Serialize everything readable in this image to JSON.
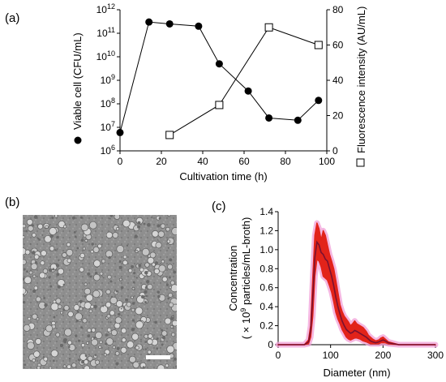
{
  "figure": {
    "panels": [
      {
        "label": "(a)",
        "chart_data": {
          "type": "scatter",
          "xlabel": "Cultivation time (h)",
          "xlim": [
            0,
            100
          ],
          "xticks": [
            "0",
            "20",
            "40",
            "60",
            "80",
            "100"
          ],
          "left_axis": {
            "label": "Viable cell (CFU/mL)",
            "scale": "log",
            "ylim": [
              1000000,
              1000000000000
            ],
            "ticks": [
              {
                "base": "10",
                "exp": "6"
              },
              {
                "base": "10",
                "exp": "7"
              },
              {
                "base": "10",
                "exp": "8"
              },
              {
                "base": "10",
                "exp": "9"
              },
              {
                "base": "10",
                "exp": "10"
              },
              {
                "base": "10",
                "exp": "11"
              },
              {
                "base": "10",
                "exp": "12"
              }
            ]
          },
          "right_axis": {
            "label": "Fluorescence intensity (AU/mL)",
            "ylim": [
              0,
              80
            ],
            "ticks": [
              "0",
              "20",
              "40",
              "60",
              "80"
            ]
          },
          "series": [
            {
              "marker": "filled-circle",
              "axis": "left",
              "color": "#000000",
              "x": [
                0,
                14,
                24,
                38,
                48,
                62,
                72,
                86,
                96
              ],
              "y": [
                6000000,
                300000000000,
                250000000000,
                200000000000,
                5000000000,
                350000000,
                25000000,
                20000000,
                140000000
              ]
            },
            {
              "marker": "open-square",
              "axis": "right",
              "color": "#000000",
              "x": [
                24,
                48,
                72,
                96
              ],
              "y": [
                9,
                26,
                70,
                60
              ]
            }
          ]
        }
      },
      {
        "label": "(b)",
        "image": {
          "kind": "negative-stain TEM micrograph",
          "scale_bar": true
        }
      },
      {
        "label": "(c)",
        "chart_data": {
          "type": "line",
          "xlabel": "Diameter (nm)",
          "ylabel_line1": "Concentration",
          "ylabel_line2": {
            "prefix": "( × 10",
            "exp": "9",
            "suffix": " particles/mL-broth)"
          },
          "xlim": [
            0,
            300
          ],
          "ylim": [
            0,
            1.4
          ],
          "xticks": [
            "0",
            "100",
            "200",
            "300"
          ],
          "yticks": [
            "0",
            "0.2",
            "0.4",
            "0.6",
            "0.8",
            "1.0",
            "1.2",
            "1.4"
          ],
          "colors": {
            "mean": "#7a1030",
            "error_band": "#e2231a",
            "halo": "#f2a0d8"
          },
          "x": [
            0,
            30,
            50,
            58,
            62,
            66,
            70,
            74,
            78,
            82,
            86,
            90,
            94,
            98,
            102,
            106,
            110,
            114,
            118,
            122,
            126,
            130,
            134,
            138,
            142,
            146,
            150,
            156,
            162,
            168,
            172,
            176,
            180,
            186,
            192,
            196,
            200,
            204,
            210,
            230,
            260,
            300
          ],
          "mean": [
            0,
            0,
            0,
            0.03,
            0.15,
            0.5,
            0.92,
            1.08,
            1.05,
            0.97,
            0.95,
            0.9,
            0.88,
            0.8,
            0.72,
            0.62,
            0.5,
            0.4,
            0.32,
            0.25,
            0.2,
            0.16,
            0.14,
            0.12,
            0.13,
            0.15,
            0.14,
            0.12,
            0.1,
            0.08,
            0.06,
            0.04,
            0.03,
            0.02,
            0.03,
            0.04,
            0.05,
            0.04,
            0.02,
            0,
            0,
            0
          ],
          "upper": [
            0,
            0,
            0,
            0.05,
            0.2,
            0.7,
            1.15,
            1.28,
            1.22,
            1.1,
            1.2,
            1.15,
            1.05,
            0.95,
            0.88,
            0.8,
            0.68,
            0.55,
            0.42,
            0.35,
            0.3,
            0.27,
            0.24,
            0.2,
            0.22,
            0.25,
            0.22,
            0.2,
            0.18,
            0.14,
            0.1,
            0.08,
            0.06,
            0.04,
            0.05,
            0.07,
            0.08,
            0.06,
            0.03,
            0,
            0,
            0
          ],
          "lower": [
            0,
            0,
            0,
            0.01,
            0.08,
            0.3,
            0.72,
            0.9,
            0.88,
            0.82,
            0.72,
            0.7,
            0.68,
            0.62,
            0.55,
            0.45,
            0.34,
            0.27,
            0.22,
            0.16,
            0.12,
            0.08,
            0.06,
            0.05,
            0.06,
            0.07,
            0.07,
            0.06,
            0.04,
            0.03,
            0.02,
            0.01,
            0.01,
            0.01,
            0.01,
            0.02,
            0.02,
            0.02,
            0.01,
            0,
            0,
            0
          ]
        }
      }
    ]
  }
}
